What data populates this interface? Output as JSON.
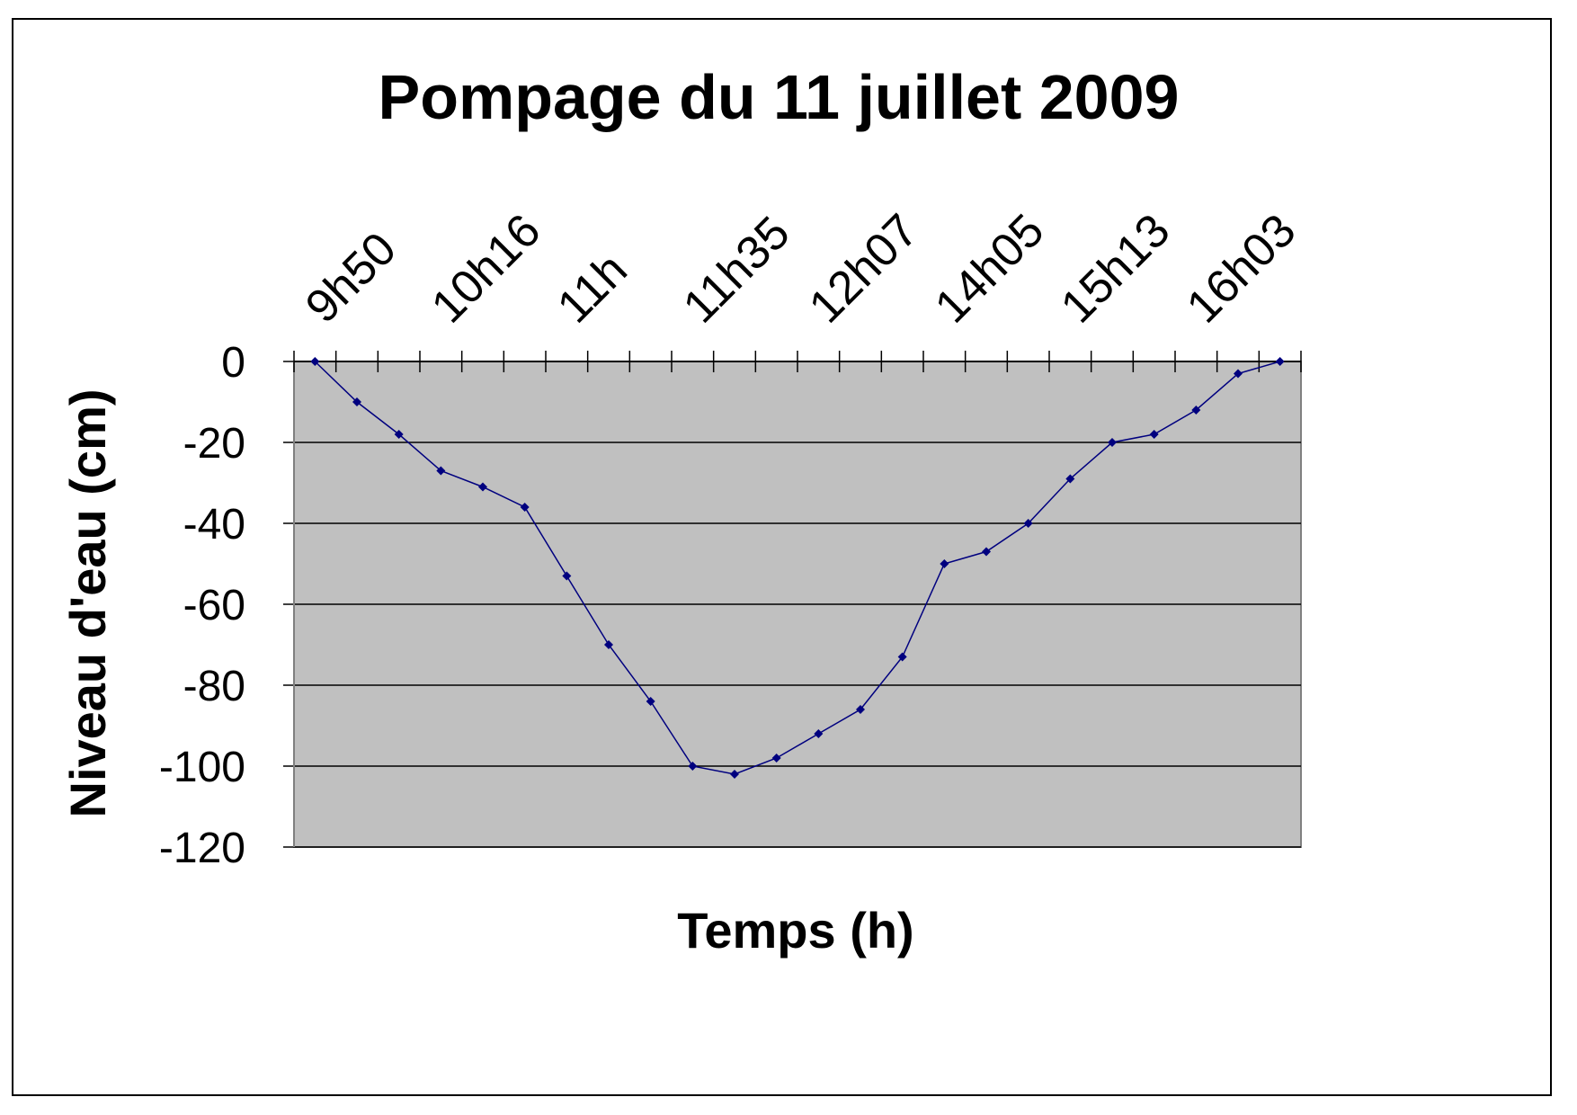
{
  "chart_data": {
    "type": "line",
    "title": "Pompage du 11 juillet 2009",
    "xlabel": "Temps (h)",
    "ylabel": "Niveau d'eau (cm)",
    "ylim": [
      -120,
      0
    ],
    "yticks": [
      0,
      -20,
      -40,
      -60,
      -80,
      -100,
      -120
    ],
    "grid": true,
    "legend": "none",
    "x_tick_labels": [
      {
        "index": 1,
        "label": "9h50"
      },
      {
        "index": 4,
        "label": "10h16"
      },
      {
        "index": 7,
        "label": "11h"
      },
      {
        "index": 10,
        "label": "11h35"
      },
      {
        "index": 13,
        "label": "12h07"
      },
      {
        "index": 16,
        "label": "14h05"
      },
      {
        "index": 19,
        "label": "15h13"
      },
      {
        "index": 22,
        "label": "16h03"
      }
    ],
    "category_count": 24,
    "series": [
      {
        "values": [
          0,
          -10,
          -18,
          -27,
          -31,
          -36,
          -53,
          -70,
          -84,
          -100,
          -102,
          -98,
          -92,
          -86,
          -73,
          -50,
          -47,
          -40,
          -29,
          -20,
          -18,
          -12,
          -3,
          0
        ]
      }
    ],
    "colors": {
      "plot_background": "#c0c0c0",
      "line": "#00007f",
      "gridline": "#000000"
    }
  }
}
